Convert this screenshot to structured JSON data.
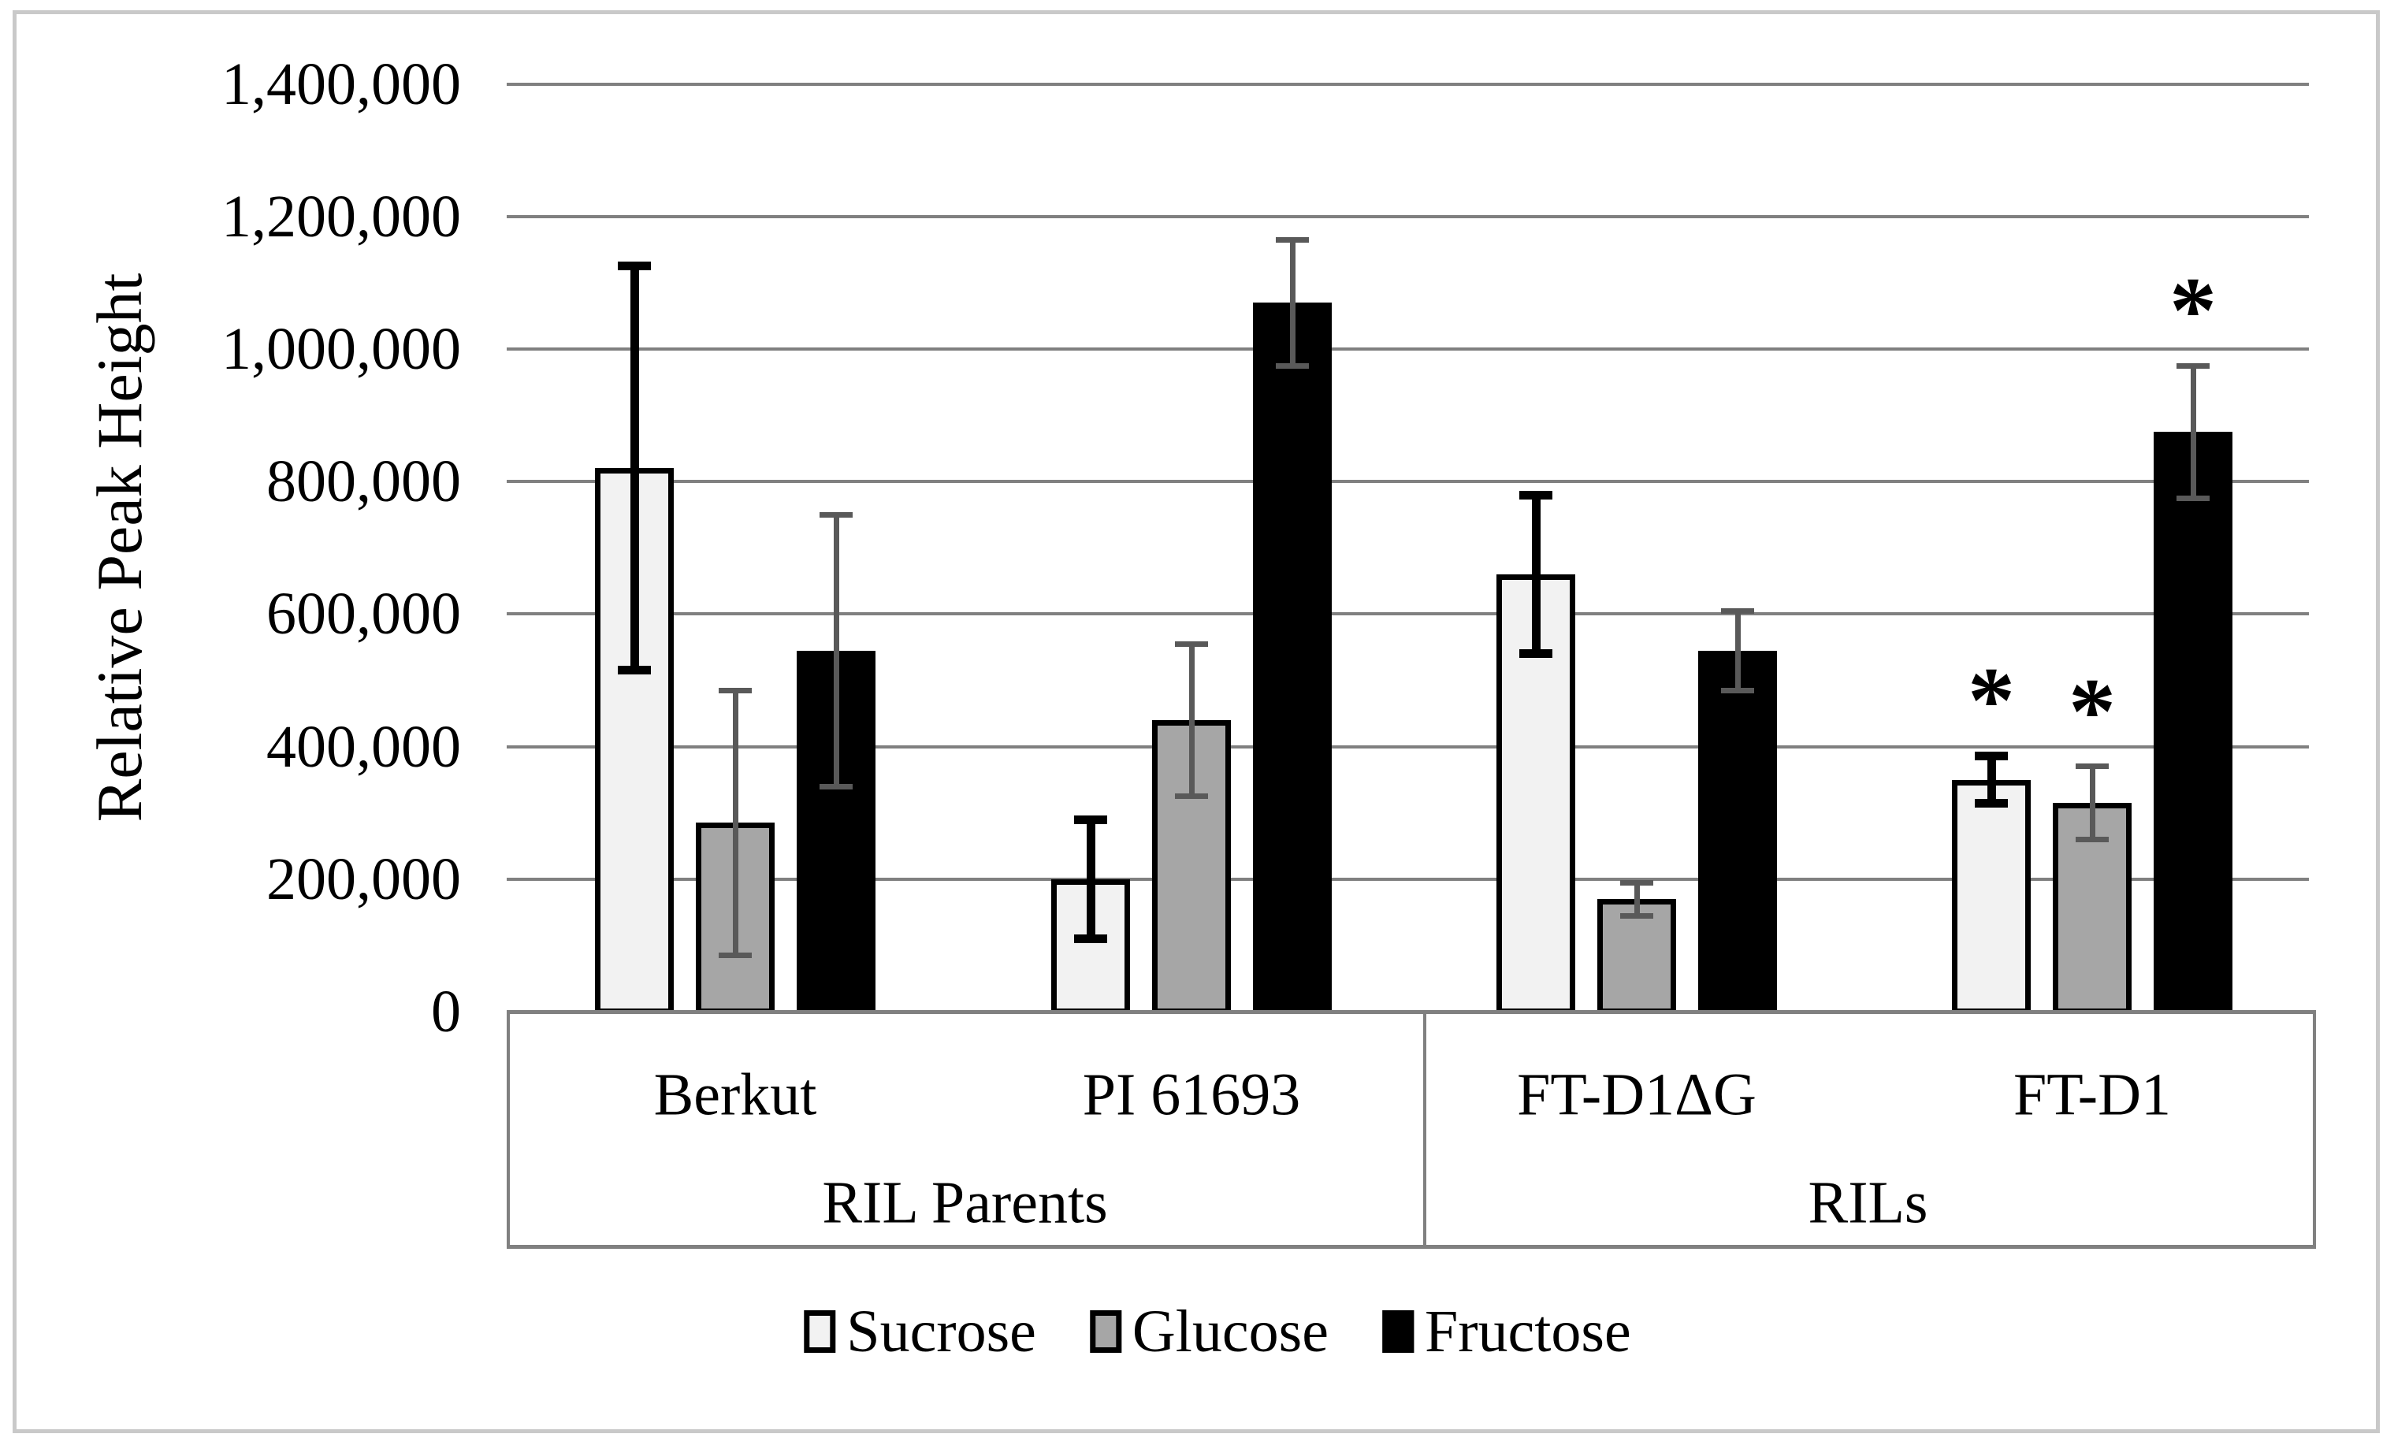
{
  "figure": {
    "background": "#ffffff",
    "frame_color": "#c9c9c9"
  },
  "chart_data": {
    "type": "bar",
    "title": "",
    "xlabel": "",
    "ylabel": "Relative Peak Height",
    "ylim": [
      0,
      1400000
    ],
    "ytick_step": 200000,
    "ytick_labels": [
      "0",
      "200,000",
      "400,000",
      "600,000",
      "800,000",
      "1,000,000",
      "1,200,000",
      "1,400,000"
    ],
    "grid": true,
    "gridline_color": "#808080",
    "axis_color": "#808080",
    "legend_position": "bottom",
    "significance_marker": "*",
    "categories": [
      "Berkut",
      "PI 61693",
      "FT-D1ΔG",
      "FT-D1"
    ],
    "category_groups": [
      {
        "label": "RIL Parents",
        "categories": [
          "Berkut",
          "PI 61693"
        ]
      },
      {
        "label": "RILs",
        "categories": [
          "FT-D1ΔG",
          "FT-D1"
        ]
      }
    ],
    "series": [
      {
        "name": "Sucrose",
        "fill": "#f2f2f2",
        "border": "#000000",
        "error_color": "#000000",
        "values": [
          820000,
          200000,
          660000,
          350000
        ],
        "errors": [
          305000,
          90000,
          120000,
          36000
        ],
        "significant": [
          false,
          false,
          false,
          true
        ]
      },
      {
        "name": "Glucose",
        "fill": "#a6a6a6",
        "border": "#000000",
        "error_color": "#595959",
        "values": [
          285000,
          440000,
          170000,
          315000
        ],
        "errors": [
          200000,
          115000,
          25000,
          55000
        ],
        "significant": [
          false,
          false,
          false,
          true
        ]
      },
      {
        "name": "Fructose",
        "fill": "#000000",
        "border": "#000000",
        "error_color": "#595959",
        "values": [
          545000,
          1070000,
          545000,
          875000
        ],
        "errors": [
          205000,
          95000,
          60000,
          100000
        ],
        "significant": [
          false,
          false,
          false,
          true
        ]
      }
    ]
  }
}
